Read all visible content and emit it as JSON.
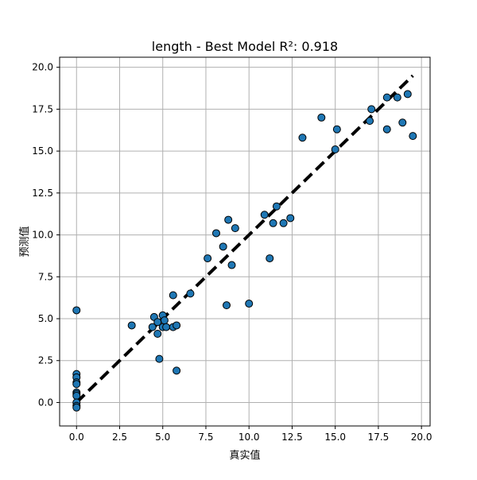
{
  "chart_data": {
    "type": "scatter",
    "title": "length - Best Model R²: 0.918",
    "xlabel": "真实值",
    "ylabel": "预测值",
    "xlim": [
      -0.98,
      20.5
    ],
    "ylim": [
      -1.4,
      20.6
    ],
    "xticks": [
      "0.0",
      "2.5",
      "5.0",
      "7.5",
      "10.0",
      "12.5",
      "15.0",
      "17.5",
      "20.0"
    ],
    "yticks": [
      "0.0",
      "2.5",
      "5.0",
      "7.5",
      "10.0",
      "12.5",
      "15.0",
      "17.5",
      "20.0"
    ],
    "grid": true,
    "reference_line": {
      "style": "dashed",
      "color": "#000000",
      "from": [
        0,
        0
      ],
      "to": [
        19.5,
        19.5
      ]
    },
    "marker_color": "#1f77b4",
    "series": [
      {
        "points": [
          [
            0,
            5.5
          ],
          [
            0,
            1.7
          ],
          [
            0,
            1.5
          ],
          [
            0,
            1.2
          ],
          [
            0,
            1.1
          ],
          [
            0,
            0.6
          ],
          [
            0,
            0.5
          ],
          [
            0,
            0.4
          ],
          [
            0,
            0.0
          ],
          [
            0,
            -0.2
          ],
          [
            0,
            -0.3
          ],
          [
            3.2,
            4.6
          ],
          [
            4.4,
            4.5
          ],
          [
            4.5,
            5.1
          ],
          [
            4.7,
            4.8
          ],
          [
            4.7,
            4.1
          ],
          [
            4.8,
            2.6
          ],
          [
            5.0,
            5.2
          ],
          [
            5.0,
            4.5
          ],
          [
            5.1,
            4.9
          ],
          [
            5.2,
            4.5
          ],
          [
            5.6,
            4.5
          ],
          [
            5.6,
            6.4
          ],
          [
            5.8,
            4.6
          ],
          [
            5.8,
            1.9
          ],
          [
            6.6,
            6.5
          ],
          [
            7.6,
            8.6
          ],
          [
            8.1,
            10.1
          ],
          [
            8.5,
            9.3
          ],
          [
            8.7,
            5.8
          ],
          [
            8.8,
            10.9
          ],
          [
            9.0,
            8.2
          ],
          [
            9.2,
            10.4
          ],
          [
            10.0,
            5.9
          ],
          [
            10.9,
            11.2
          ],
          [
            11.2,
            8.6
          ],
          [
            11.4,
            10.7
          ],
          [
            11.6,
            11.7
          ],
          [
            12.0,
            10.7
          ],
          [
            12.4,
            11.0
          ],
          [
            13.1,
            15.8
          ],
          [
            14.2,
            17.0
          ],
          [
            15.0,
            15.1
          ],
          [
            15.1,
            16.3
          ],
          [
            17.0,
            16.8
          ],
          [
            17.1,
            17.5
          ],
          [
            18.0,
            18.2
          ],
          [
            18.0,
            16.3
          ],
          [
            18.6,
            18.2
          ],
          [
            18.9,
            16.7
          ],
          [
            19.2,
            18.4
          ],
          [
            19.5,
            15.9
          ]
        ]
      }
    ]
  }
}
